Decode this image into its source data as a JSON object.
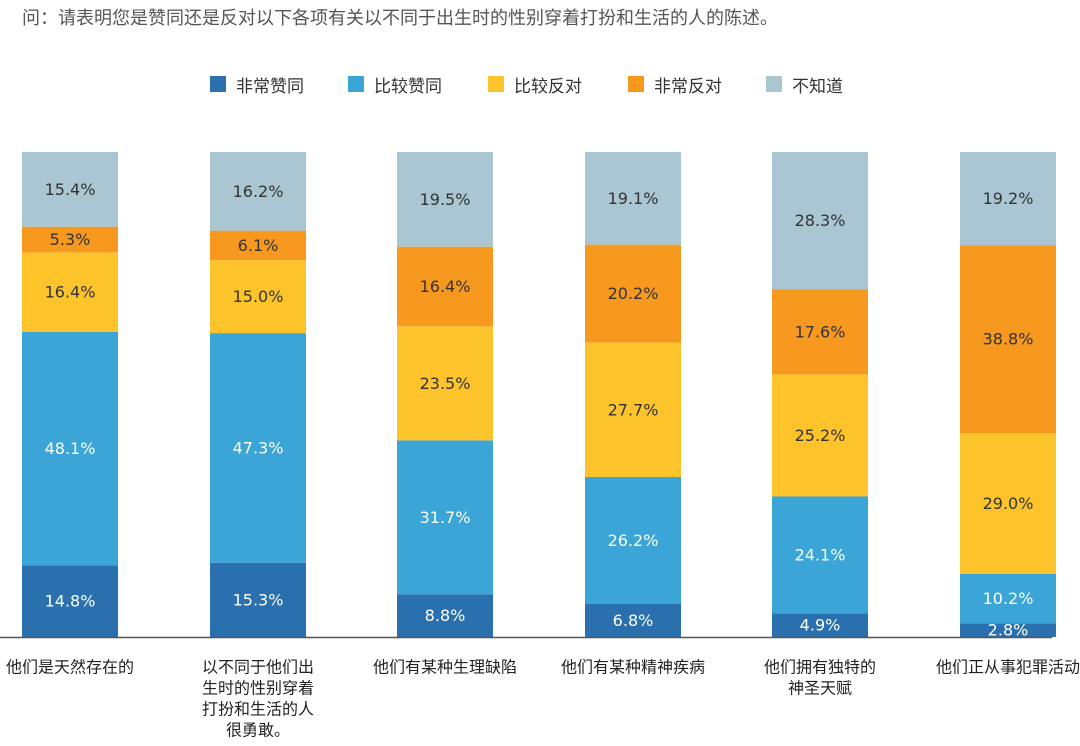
{
  "question": "问：请表明您是赞同还是反对以下各项有关以不同于出生时的性别穿着打扮和生活的人的陈述。",
  "colors": {
    "strongly_agree": "#2a6fae",
    "somewhat_agree": "#3aa5d6",
    "somewhat_disagree": "#fcc42a",
    "strongly_disagree": "#f7981f",
    "dont_know": "#a9c6d2"
  },
  "chart_data": {
    "type": "bar",
    "stacked": true,
    "orientation": "vertical",
    "title": "",
    "xlabel": "",
    "ylabel": "",
    "ylim": [
      0,
      100
    ],
    "grid": false,
    "legend_position": "top",
    "categories": [
      [
        "他们是天然存在的"
      ],
      [
        "以不同于他们出",
        "生时的性别穿着",
        "打扮和生活的人",
        "很勇敢。"
      ],
      [
        "他们有某种生理缺陷"
      ],
      [
        "他们有某种精神疾病"
      ],
      [
        "他们拥有独特的",
        "神圣天赋"
      ],
      [
        "他们正从事犯罪活动"
      ]
    ],
    "series": [
      {
        "name": "非常赞同",
        "key": "strongly_agree",
        "values": [
          14.8,
          15.3,
          8.8,
          6.8,
          4.9,
          2.8
        ],
        "labels": [
          "14.8%",
          "15.3%",
          "8.8%",
          "6.8%",
          "4.9%",
          "2.8%"
        ]
      },
      {
        "name": "比较赞同",
        "key": "somewhat_agree",
        "values": [
          48.1,
          47.3,
          31.7,
          26.2,
          24.1,
          10.2
        ],
        "labels": [
          "48.1%",
          "47.3%",
          "31.7%",
          "26.2%",
          "24.1%",
          "10.2%"
        ]
      },
      {
        "name": "比较反对",
        "key": "somewhat_disagree",
        "values": [
          16.4,
          15.0,
          23.5,
          27.7,
          25.2,
          29.0
        ],
        "labels": [
          "16.4%",
          "15.0%",
          "23.5%",
          "27.7%",
          "25.2%",
          "29.0%"
        ]
      },
      {
        "name": "非常反对",
        "key": "strongly_disagree",
        "values": [
          5.3,
          6.1,
          16.4,
          20.2,
          17.6,
          38.8
        ],
        "labels": [
          "5.3%",
          "6.1%",
          "16.4%",
          "20.2%",
          "17.6%",
          "38.8%"
        ]
      },
      {
        "name": "不知道",
        "key": "dont_know",
        "values": [
          15.4,
          16.2,
          19.5,
          19.1,
          28.3,
          19.2
        ],
        "labels": [
          "15.4%",
          "16.2%",
          "19.5%",
          "19.1%",
          "28.3%",
          "19.2%"
        ]
      }
    ]
  }
}
